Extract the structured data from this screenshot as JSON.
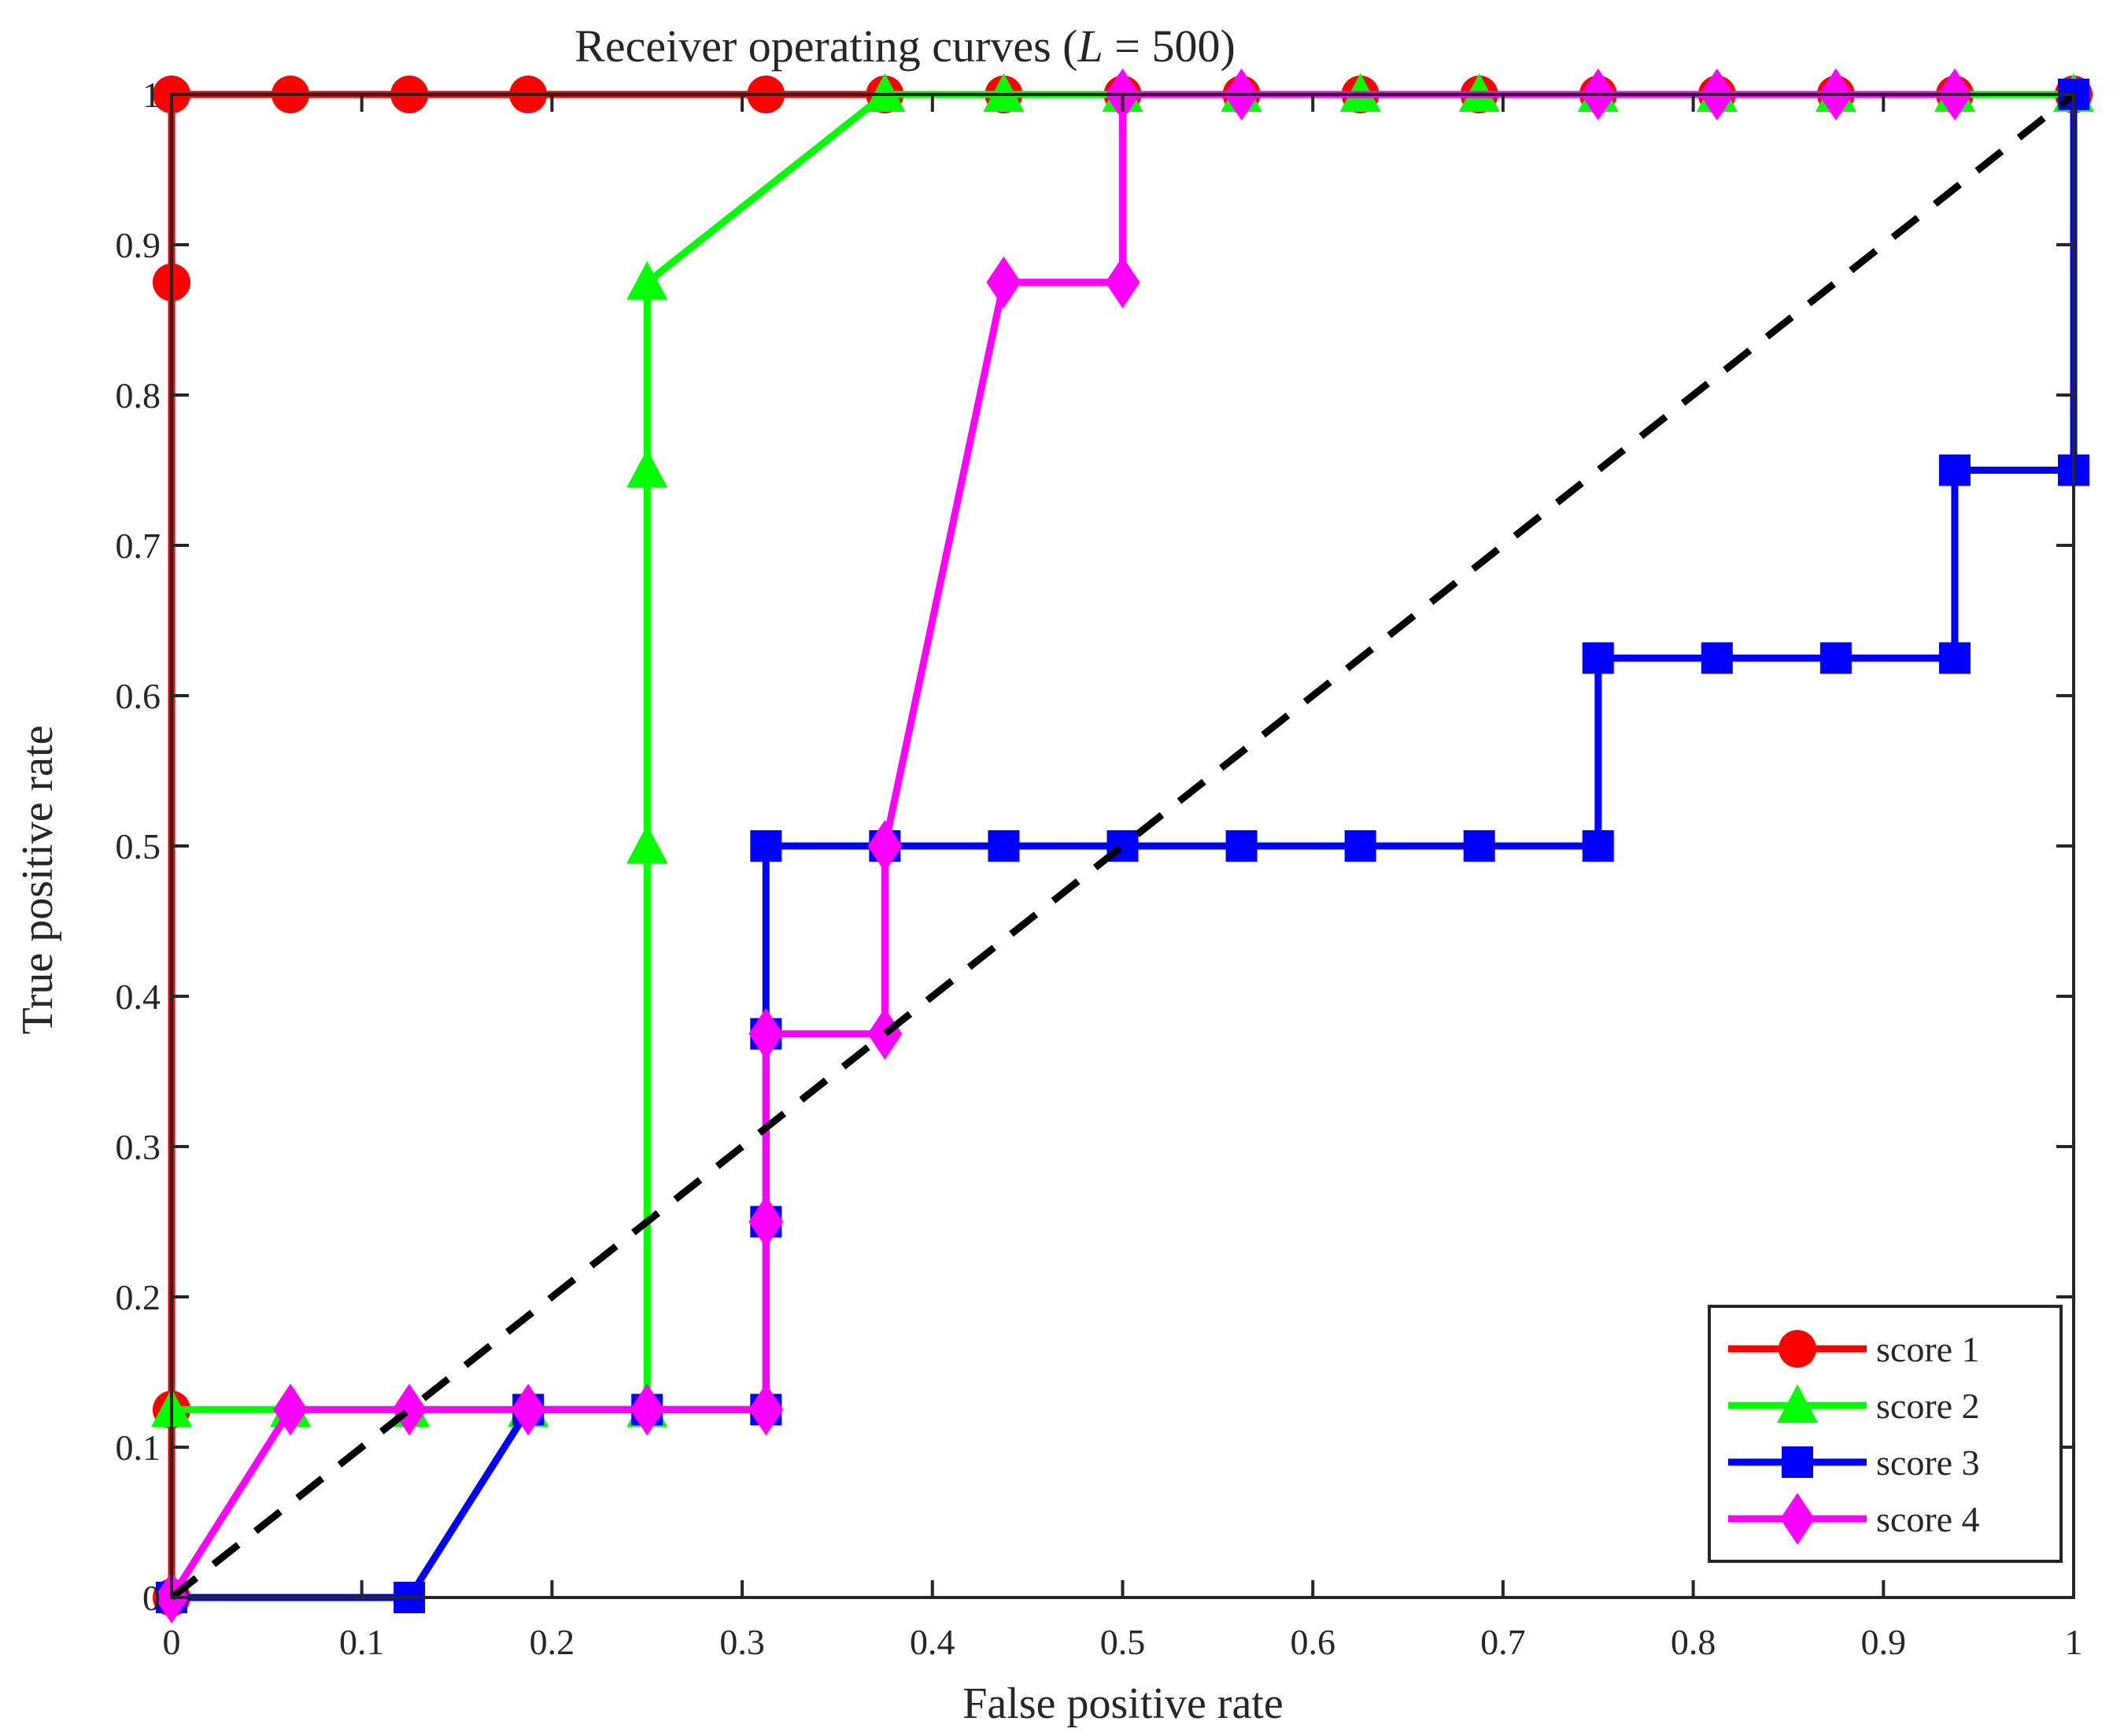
{
  "chart_data": {
    "type": "line",
    "title": "Receiver operating curves (",
    "title_math": "L",
    "title_tail": " = 500)",
    "xlabel": "False positive rate",
    "ylabel": "True positive rate",
    "xlim": [
      0,
      1
    ],
    "ylim": [
      0,
      1
    ],
    "xticks": [
      "0",
      "0.1",
      "0.2",
      "0.3",
      "0.4",
      "0.5",
      "0.6",
      "0.7",
      "0.8",
      "0.9",
      "1"
    ],
    "yticks": [
      "0",
      "0.1",
      "0.2",
      "0.3",
      "0.4",
      "0.5",
      "0.6",
      "0.7",
      "0.8",
      "0.9",
      "1"
    ],
    "grid": false,
    "legend_position": "bottom-right",
    "series": [
      {
        "name": "score 1",
        "color": "#ff0000",
        "marker": "circle",
        "x": [
          0,
          0,
          0,
          0,
          0.0625,
          0.125,
          0.1875,
          0.3125,
          0.375,
          0.4375,
          0.5,
          0.5625,
          0.625,
          0.6875,
          0.75,
          0.8125,
          0.875,
          0.9375,
          1
        ],
        "y": [
          0,
          0.125,
          0.875,
          1,
          1,
          1,
          1,
          1,
          1,
          1,
          1,
          1,
          1,
          1,
          1,
          1,
          1,
          1,
          1
        ]
      },
      {
        "name": "score 2",
        "color": "#00ff00",
        "marker": "triangle",
        "x": [
          0,
          0.0625,
          0.125,
          0.1875,
          0.25,
          0.25,
          0.25,
          0.25,
          0.375,
          0.4375,
          0.5,
          0.5625,
          0.625,
          0.6875,
          0.75,
          0.8125,
          0.875,
          0.9375,
          1
        ],
        "y": [
          0.125,
          0.125,
          0.125,
          0.125,
          0.125,
          0.5,
          0.75,
          0.875,
          1,
          1,
          1,
          1,
          1,
          1,
          1,
          1,
          1,
          1,
          1
        ]
      },
      {
        "name": "score 3",
        "color": "#0000ff",
        "marker": "square",
        "x": [
          0,
          0.125,
          0.1875,
          0.25,
          0.3125,
          0.3125,
          0.3125,
          0.3125,
          0.375,
          0.4375,
          0.5,
          0.5625,
          0.625,
          0.6875,
          0.75,
          0.75,
          0.8125,
          0.875,
          0.9375,
          0.9375,
          1,
          1
        ],
        "y": [
          0,
          0,
          0.125,
          0.125,
          0.125,
          0.25,
          0.375,
          0.5,
          0.5,
          0.5,
          0.5,
          0.5,
          0.5,
          0.5,
          0.5,
          0.625,
          0.625,
          0.625,
          0.625,
          0.75,
          0.75,
          1
        ]
      },
      {
        "name": "score 4",
        "color": "#ff00ff",
        "marker": "diamond",
        "x": [
          0,
          0.0625,
          0.125,
          0.1875,
          0.25,
          0.3125,
          0.3125,
          0.3125,
          0.375,
          0.375,
          0.4375,
          0.5,
          0.5,
          0.5625,
          0.75,
          0.8125,
          0.875,
          0.9375
        ],
        "y": [
          0,
          0.125,
          0.125,
          0.125,
          0.125,
          0.125,
          0.25,
          0.375,
          0.375,
          0.5,
          0.875,
          0.875,
          1,
          1,
          1,
          1,
          1,
          1
        ]
      }
    ],
    "reference_line": {
      "x": [
        0,
        1
      ],
      "y": [
        0,
        1
      ],
      "color": "#000000",
      "style": "dashed"
    }
  }
}
